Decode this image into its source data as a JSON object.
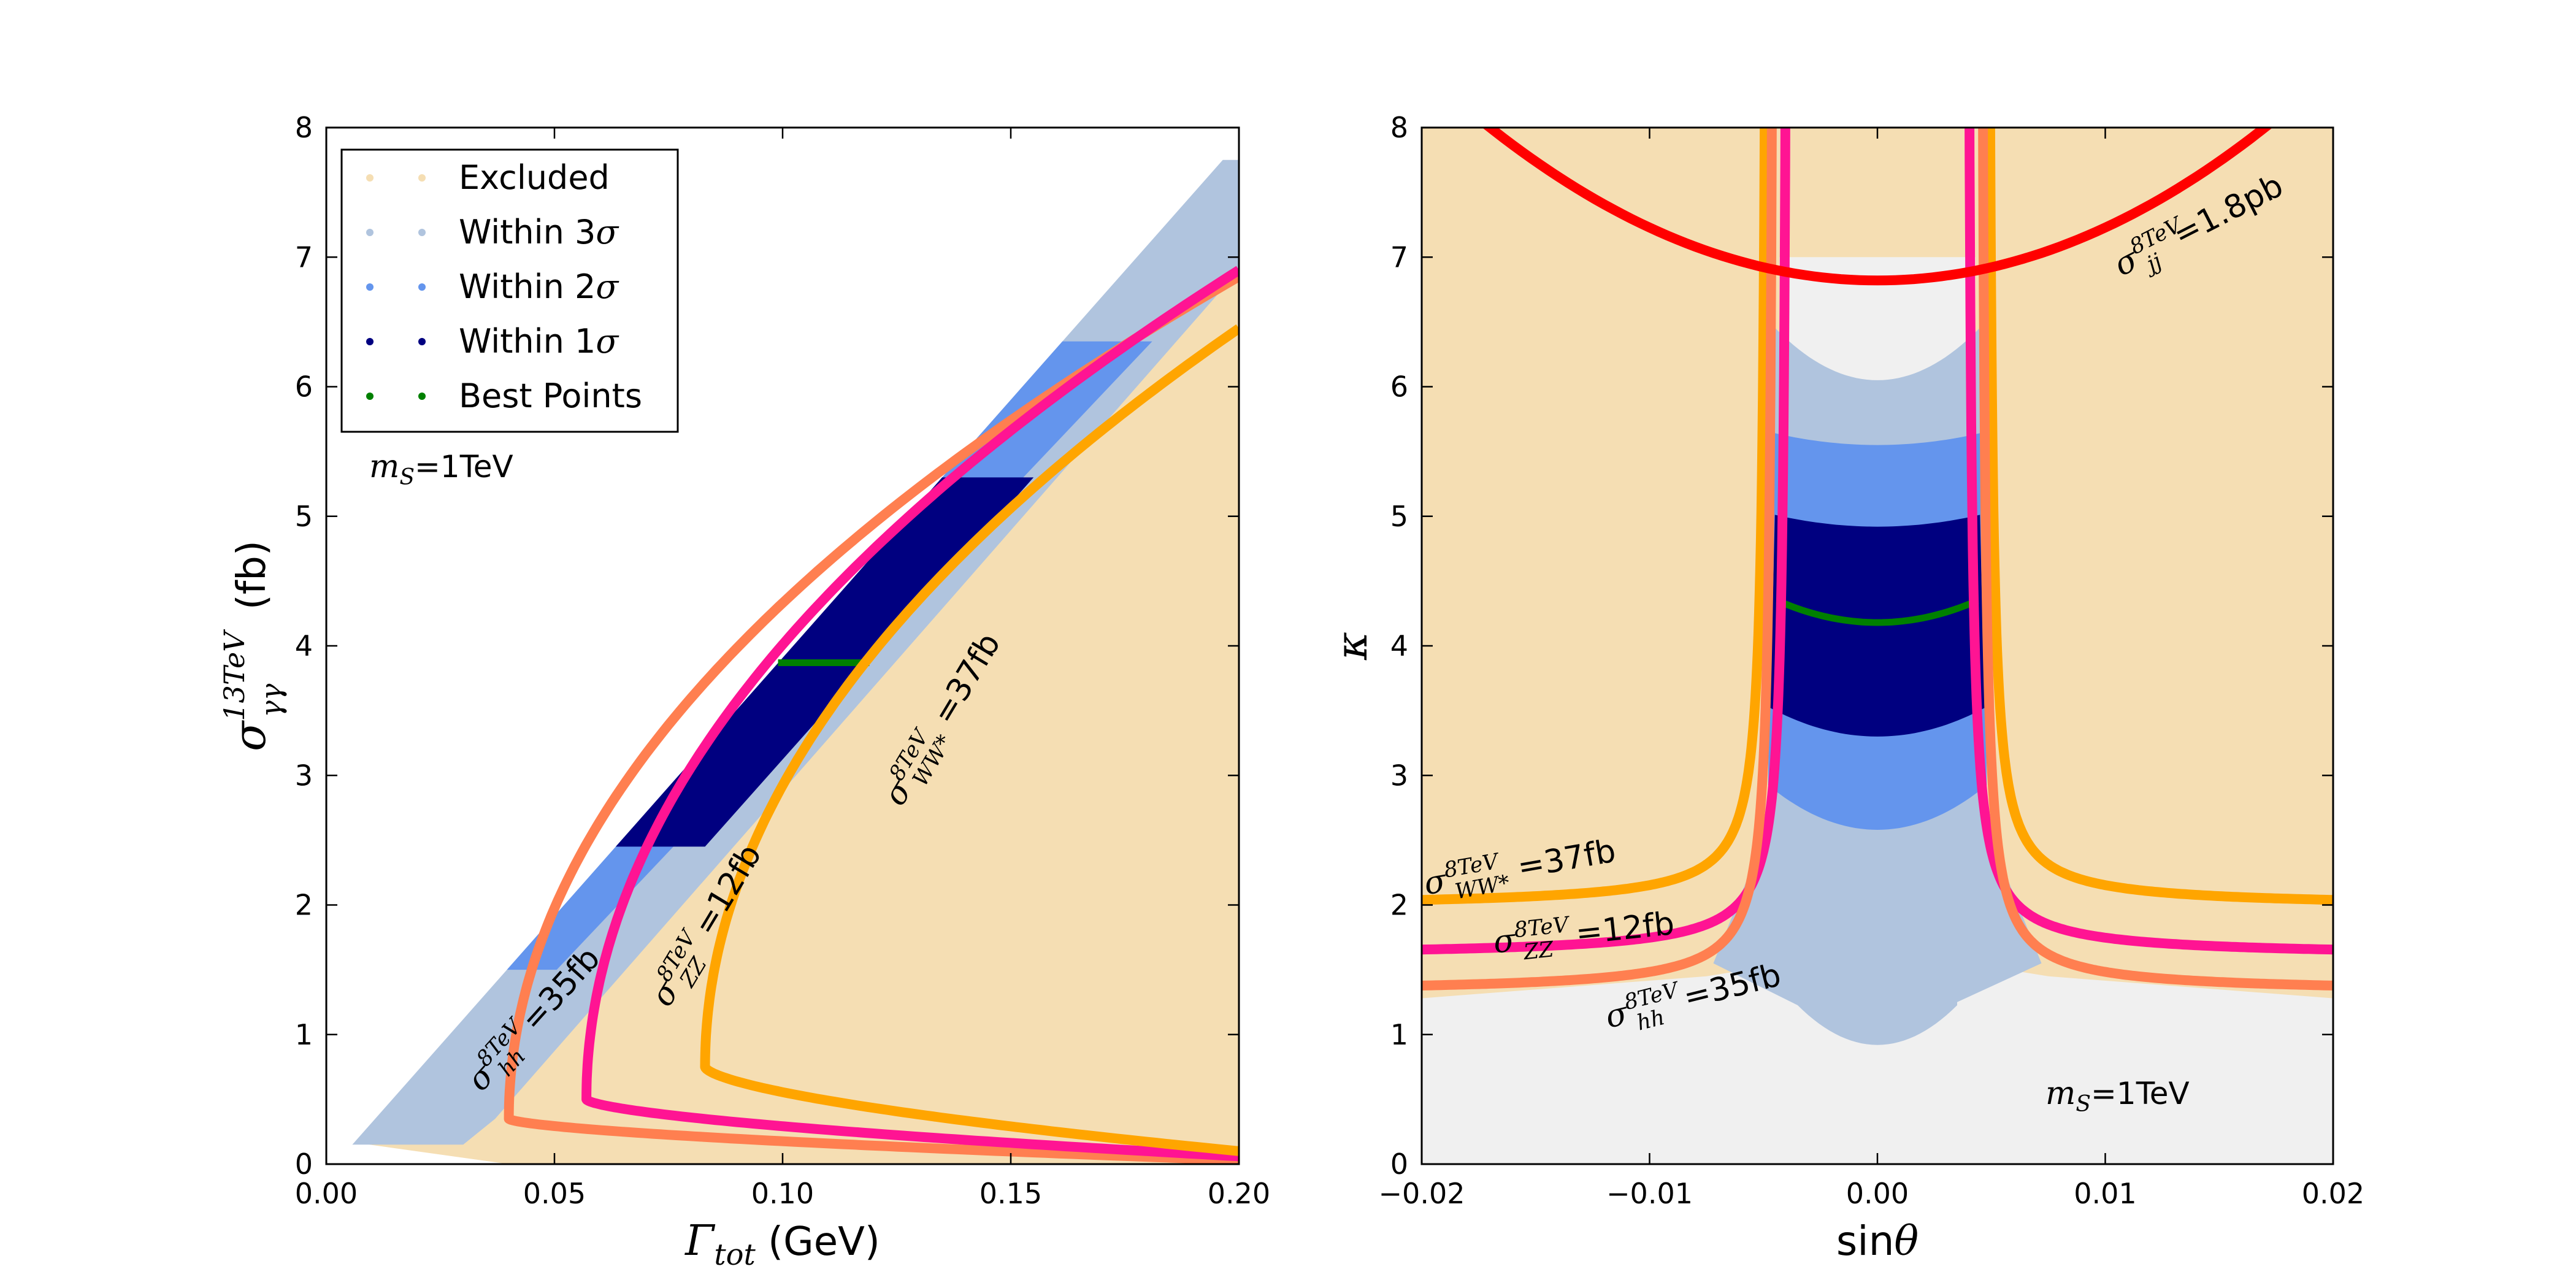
{
  "chart_data": [
    {
      "type": "scatter",
      "title": "",
      "xlabel": "Γ",
      "xlabel_sub": "tot",
      "xlabel_unit": " (GeV)",
      "ylabel": "σ",
      "ylabel_sup": "13TeV",
      "ylabel_sub": "γγ",
      "ylabel_unit": " (fb)",
      "xlim": [
        0.0,
        0.2
      ],
      "ylim": [
        0,
        8
      ],
      "xticks": [
        0.0,
        0.05,
        0.1,
        0.15,
        0.2
      ],
      "xtick_labels": [
        "0.00",
        "0.05",
        "0.10",
        "0.15",
        "0.20"
      ],
      "yticks": [
        0,
        1,
        2,
        3,
        4,
        5,
        6,
        7,
        8
      ],
      "ytick_labels": [
        "0",
        "1",
        "2",
        "3",
        "4",
        "5",
        "6",
        "7",
        "8"
      ],
      "annotation": {
        "math": "m",
        "sub": "S",
        "rest": "=1TeV"
      },
      "legend": {
        "position": "top-left",
        "entries": [
          {
            "label": "Excluded",
            "sigma": "",
            "color": "#f5deb3"
          },
          {
            "label": "Within 3",
            "sigma": "σ",
            "color": "#b0c4de"
          },
          {
            "label": "Within 2",
            "sigma": "σ",
            "color": "#6495ed"
          },
          {
            "label": "Within 1",
            "sigma": "σ",
            "color": "#000080"
          },
          {
            "label": "Best Points",
            "sigma": "",
            "color": "#008000"
          }
        ]
      },
      "regions": [
        {
          "name": "within-3sigma",
          "color": "#b0c4de",
          "y_range": [
            0.15,
            7.75
          ],
          "right_edge_width_at_y0": 0.0057,
          "slope_gamma_per_fb": 0.0251
        },
        {
          "name": "within-2sigma",
          "color": "#6495ed",
          "y_range": [
            1.5,
            6.35
          ]
        },
        {
          "name": "within-1sigma",
          "color": "#000080",
          "y_range": [
            2.45,
            5.3
          ]
        },
        {
          "name": "best-points",
          "color": "#008000",
          "y_value": 3.87,
          "x_range": [
            0.099,
            0.119
          ]
        },
        {
          "name": "excluded",
          "color": "#f5deb3"
        }
      ],
      "series": [
        {
          "name": "hh-35fb",
          "color": "#ff7f50",
          "vertex": {
            "x": 0.04,
            "y": 0.35
          },
          "lower_end": {
            "x": 0.2,
            "y": 0.03
          },
          "upper_end": {
            "x": 0.2,
            "y": 6.85
          }
        },
        {
          "name": "zz-12fb",
          "color": "#ff1493",
          "vertex": {
            "x": 0.057,
            "y": 0.5
          },
          "lower_end": {
            "x": 0.2,
            "y": 0.06
          },
          "upper_end": {
            "x": 0.2,
            "y": 6.9
          }
        },
        {
          "name": "ww-37fb",
          "color": "#ffa500",
          "vertex": {
            "x": 0.083,
            "y": 0.75
          },
          "lower_end": {
            "x": 0.2,
            "y": 0.1
          },
          "upper_end": {
            "x": 0.2,
            "y": 6.45
          }
        }
      ],
      "curve_labels": [
        {
          "series": "hh-35fb",
          "sigma": "σ",
          "sup": "8TeV",
          "sub": "hh",
          "value": "=35fb",
          "anchor": {
            "x": 0.034,
            "y": 0.55
          },
          "angle_deg": -48
        },
        {
          "series": "zz-12fb",
          "sigma": "σ",
          "sup": "8TeV",
          "sub": "ZZ",
          "value": "=12fb",
          "anchor": {
            "x": 0.075,
            "y": 1.2
          },
          "angle_deg": -59
        },
        {
          "series": "ww-37fb",
          "sigma": "σ",
          "sup": "8TeV",
          "sub": "WW*",
          "value": "=37fb",
          "anchor": {
            "x": 0.126,
            "y": 2.75
          },
          "angle_deg": -59
        }
      ]
    },
    {
      "type": "scatter",
      "title": "",
      "xlabel": "sin",
      "xlabel_theta": "θ",
      "ylabel": "κ",
      "xlim": [
        -0.02,
        0.02
      ],
      "ylim": [
        0,
        8
      ],
      "xticks": [
        -0.02,
        -0.01,
        0.0,
        0.01,
        0.02
      ],
      "xtick_labels": [
        "−0.02",
        "−0.01",
        "0.00",
        "0.01",
        "0.02"
      ],
      "yticks": [
        0,
        1,
        2,
        3,
        4,
        5,
        6,
        7,
        8
      ],
      "ytick_labels": [
        "0",
        "1",
        "2",
        "3",
        "4",
        "5",
        "6",
        "7",
        "8"
      ],
      "annotation": {
        "math": "m",
        "sub": "S",
        "rest": "=1TeV"
      },
      "background_color": "#f0f0f0",
      "regions": [
        {
          "name": "within-3sigma",
          "color": "#b0c4de",
          "kappa_range_center": [
            0.92,
            6.05
          ],
          "sin_range_top": [
            -0.0043,
            0.0043
          ]
        },
        {
          "name": "within-2sigma",
          "color": "#6495ed",
          "kappa_range_center": [
            2.58,
            5.55
          ]
        },
        {
          "name": "within-1sigma",
          "color": "#000080",
          "kappa_range_center": [
            3.3,
            4.92
          ]
        },
        {
          "name": "best-points",
          "color": "#008000",
          "kappa_center": 4.18,
          "kappa_edge": 4.35,
          "sin_range": [
            -0.0044,
            0.0044
          ]
        }
      ],
      "series": [
        {
          "name": "ww-37fb",
          "color": "#ffa500",
          "pole_sin": 0.0048,
          "asymptote_kappa": 1.98,
          "kappa_at_edges": 2.02
        },
        {
          "name": "zz-12fb",
          "color": "#ff1493",
          "pole_sin": 0.0039,
          "asymptote_kappa": 1.6,
          "kappa_at_edges": 1.6
        },
        {
          "name": "hh-35fb",
          "color": "#ff7f50",
          "pole_sin": 0.0045,
          "asymptote_kappa": 1.32,
          "kappa_at_edges": 1.32
        },
        {
          "name": "jj-1.8pb",
          "color": "#ff0000",
          "vertex": {
            "x": 0.0,
            "y": 6.82
          },
          "kappa_at_sin_-0.0165": 8.0,
          "kappa_at_sin_0.0175": 8.0
        }
      ],
      "curve_labels": [
        {
          "series": "ww-37fb",
          "sigma": "σ",
          "sup": "8TeV",
          "sub": "WW*",
          "value": "=37fb",
          "anchor": {
            "x": -0.0198,
            "y": 2.08
          },
          "angle_deg": -10
        },
        {
          "series": "zz-12fb",
          "sigma": "σ",
          "sup": "8TeV",
          "sub": "ZZ",
          "value": "=12fb",
          "anchor": {
            "x": -0.0168,
            "y": 1.63
          },
          "angle_deg": -6
        },
        {
          "series": "hh-35fb",
          "sigma": "σ",
          "sup": "8TeV",
          "sub": "hh",
          "value": "=35fb",
          "anchor": {
            "x": -0.0118,
            "y": 1.05
          },
          "angle_deg": -14
        },
        {
          "series": "jj-1.8pb",
          "sigma": "σ",
          "sup": "8TeV",
          "sub": "jj",
          "value": "=1.8pb",
          "anchor": {
            "x": 0.0107,
            "y": 6.85
          },
          "angle_deg": -27
        }
      ]
    }
  ]
}
